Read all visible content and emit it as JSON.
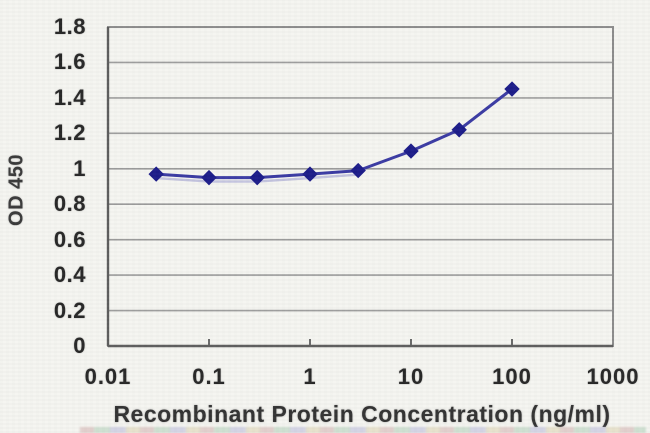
{
  "chart_data": {
    "type": "line",
    "title": "",
    "xlabel": "Recombinant Protein Concentration (ng/ml)",
    "ylabel": "OD 450",
    "x_scale": "log",
    "xlim": [
      0.01,
      1000
    ],
    "ylim": [
      0,
      1.8
    ],
    "x_ticks": [
      "0.01",
      "0.1",
      "1",
      "10",
      "100",
      "1000"
    ],
    "y_ticks": [
      "0",
      "0.2",
      "0.4",
      "0.6",
      "0.8",
      "1",
      "1.2",
      "1.4",
      "1.6",
      "1.8"
    ],
    "grid": "horizontal",
    "legend": "none",
    "series": [
      {
        "x": [
          0.03,
          0.1,
          0.3,
          1,
          3,
          10,
          30,
          100
        ],
        "y": [
          0.97,
          0.95,
          0.95,
          0.97,
          0.99,
          1.1,
          1.22,
          1.45
        ],
        "marker": "diamond",
        "line_color": "#3b3ba4",
        "marker_color": "#1c1c8a",
        "ghost_line_color": "#9a9ad0"
      }
    ],
    "colors": {
      "grid": "#9c9c9c",
      "plot_border": "#8d8d8d",
      "axis": "#5c5c5c",
      "tick": "#6a6a6a",
      "text": "#272727",
      "background": "#f5f5f1"
    }
  }
}
